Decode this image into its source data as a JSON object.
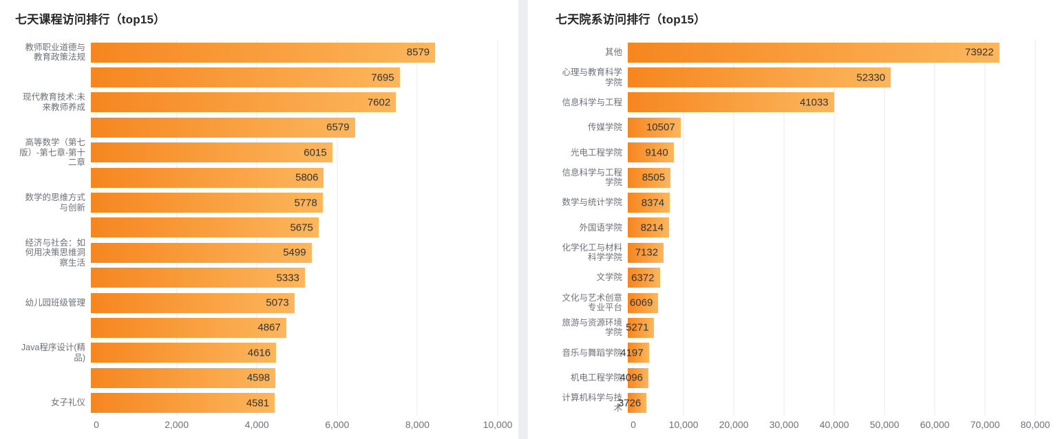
{
  "colors": {
    "bar_gradient_start": "#f6861f",
    "bar_gradient_end": "#fcb65c",
    "value_label": "#333333",
    "axis_label": "#6e7079",
    "grid_line": "#e4e8f1",
    "title_color": "#262626",
    "page_bg": "#eceef2",
    "panel_bg": "#ffffff"
  },
  "chart_data": [
    {
      "type": "bar",
      "orientation": "horizontal",
      "title": "七天课程访问排行（top15）",
      "xlim": [
        0,
        10000
      ],
      "x_ticks": [
        "0",
        "2,000",
        "4,000",
        "6,000",
        "8,000",
        "10,000"
      ],
      "grid": true,
      "legend": false,
      "value_label_position": "inside-right",
      "categories": [
        "教师职业道德与教育政策法规",
        "",
        "现代教育技术:未来教师养成",
        "",
        "高等数学（第七版）-第七章-第十二章",
        "",
        "数学的思维方式与创新",
        "",
        "经济与社会：如何用决策思维洞察生活",
        "",
        "幼儿园班级管理",
        "",
        "Java程序设计(精品)",
        "",
        "女子礼仪"
      ],
      "values": [
        8579,
        7695,
        7602,
        6579,
        6015,
        5806,
        5778,
        5675,
        5499,
        5333,
        5073,
        4867,
        4616,
        4598,
        4581
      ]
    },
    {
      "type": "bar",
      "orientation": "horizontal",
      "title": "七天院系访问排行（top15）",
      "xlim": [
        0,
        80000
      ],
      "x_ticks": [
        "0",
        "10,000",
        "20,000",
        "30,000",
        "40,000",
        "50,000",
        "60,000",
        "70,000",
        "80,000"
      ],
      "grid": true,
      "legend": false,
      "value_label_position": "inside-right",
      "categories": [
        "其他",
        "心理与教育科学学院",
        "信息科学与工程",
        "传媒学院",
        "光电工程学院",
        "信息科学与工程学院",
        "数学与统计学院",
        "外国语学院",
        "化学化工与材料科学学院",
        "文学院",
        "文化与艺术创意专业平台",
        "旅游与资源环境学院",
        "音乐与舞蹈学院",
        "机电工程学院",
        "计算机科学与技术"
      ],
      "values": [
        73922,
        52330,
        41033,
        10507,
        9140,
        8505,
        8374,
        8214,
        7132,
        6372,
        6069,
        5271,
        4197,
        4096,
        3726
      ]
    }
  ]
}
